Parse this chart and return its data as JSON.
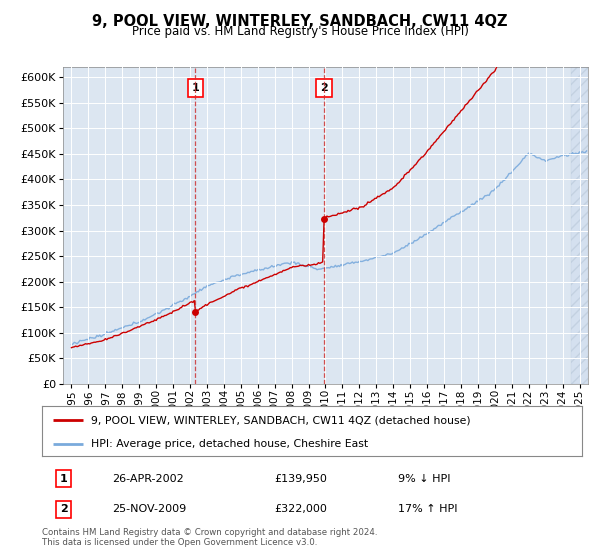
{
  "title": "9, POOL VIEW, WINTERLEY, SANDBACH, CW11 4QZ",
  "subtitle": "Price paid vs. HM Land Registry's House Price Index (HPI)",
  "legend_label_red": "9, POOL VIEW, WINTERLEY, SANDBACH, CW11 4QZ (detached house)",
  "legend_label_blue": "HPI: Average price, detached house, Cheshire East",
  "footnote": "Contains HM Land Registry data © Crown copyright and database right 2024.\nThis data is licensed under the Open Government Licence v3.0.",
  "sale1_date": "26-APR-2002",
  "sale1_price": "£139,950",
  "sale1_hpi": "9% ↓ HPI",
  "sale2_date": "25-NOV-2009",
  "sale2_price": "£322,000",
  "sale2_hpi": "17% ↑ HPI",
  "sale1_x": 2002.32,
  "sale1_y": 139950,
  "sale2_x": 2009.9,
  "sale2_y": 322000,
  "vline1_x": 2002.32,
  "vline2_x": 2009.9,
  "ylim": [
    0,
    620000
  ],
  "xlim_start": 1994.5,
  "xlim_end": 2025.5,
  "yticks": [
    0,
    50000,
    100000,
    150000,
    200000,
    250000,
    300000,
    350000,
    400000,
    450000,
    500000,
    550000,
    600000
  ],
  "xticks": [
    1995,
    1996,
    1997,
    1998,
    1999,
    2000,
    2001,
    2002,
    2003,
    2004,
    2005,
    2006,
    2007,
    2008,
    2009,
    2010,
    2011,
    2012,
    2013,
    2014,
    2015,
    2016,
    2017,
    2018,
    2019,
    2020,
    2021,
    2022,
    2023,
    2024,
    2025
  ],
  "hpi_color": "#7aaadc",
  "price_color": "#cc0000",
  "background_color": "#dce6f1",
  "shade_color": "#c8d8ec"
}
